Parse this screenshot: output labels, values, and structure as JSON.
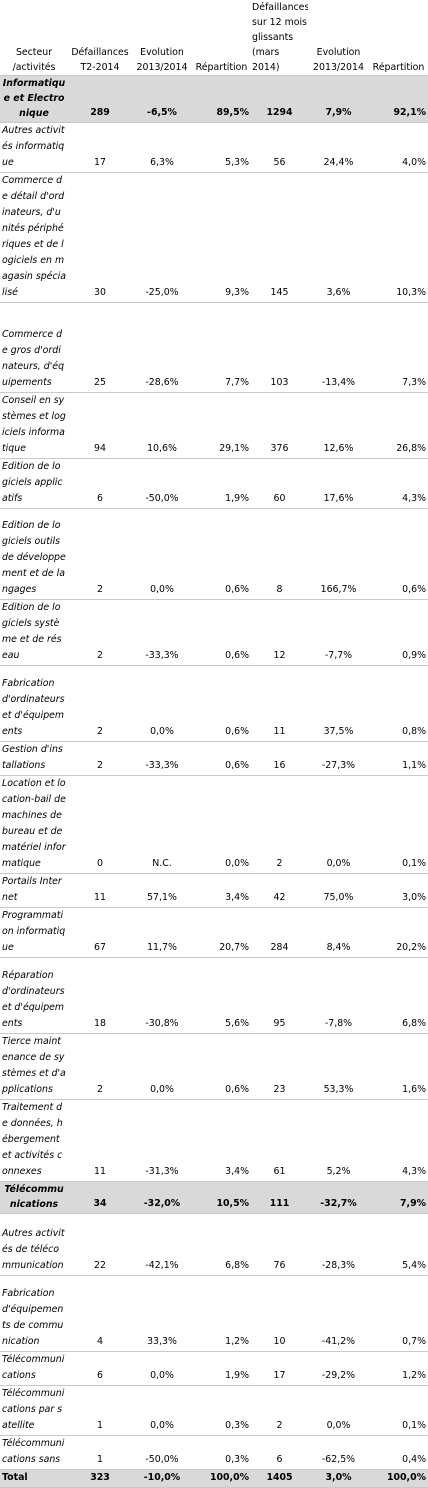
{
  "headers": [
    "Secteur /activités",
    "Défaillances T2-2014",
    "Evolution 2013/2014",
    "Répartition",
    "Défaillances sur 12 mois glissants (mars 2014)",
    "Evolution 2013/2014",
    "Répartition"
  ],
  "rows": [
    {
      "type": "cat",
      "cells": [
        "Informatique et Electronique",
        "289",
        "-6,5%",
        "89,5%",
        "1294",
        "7,9%",
        "92,1%"
      ]
    },
    {
      "type": "item",
      "cells": [
        "Autres activités informatique",
        "17",
        "6,3%",
        "5,3%",
        "56",
        "24,4%",
        "4,0%"
      ]
    },
    {
      "type": "item",
      "cells": [
        "Commerce de détail d'ordinateurs, d'unités périphériques et de logiciels en magasin spécialisé",
        "30",
        "-25,0%",
        "9,3%",
        "145",
        "3,6%",
        "10,3%"
      ]
    },
    {
      "type": "item",
      "cells": [
        "Commerce de gros d'ordinateurs, d'équipements",
        "25",
        "-28,6%",
        "7,7%",
        "103",
        "-13,4%",
        "7,3%"
      ]
    },
    {
      "type": "item",
      "cells": [
        "Conseil en systèmes et logiciels informatique",
        "94",
        "10,6%",
        "29,1%",
        "376",
        "12,6%",
        "26,8%"
      ]
    },
    {
      "type": "item",
      "cells": [
        "Edition de logiciels applicatifs",
        "6",
        "-50,0%",
        "1,9%",
        "60",
        "17,6%",
        "4,3%"
      ]
    },
    {
      "type": "item",
      "cells": [
        "Edition de logiciels outils de développement et de langages",
        "2",
        "0,0%",
        "0,6%",
        "8",
        "166,7%",
        "0,6%"
      ]
    },
    {
      "type": "item",
      "cells": [
        "Edition de logiciels système et de réseau",
        "2",
        "-33,3%",
        "0,6%",
        "12",
        "-7,7%",
        "0,9%"
      ]
    },
    {
      "type": "item",
      "cells": [
        "Fabrication d'ordinateurs et d'équipements",
        "2",
        "0,0%",
        "0,6%",
        "11",
        "37,5%",
        "0,8%"
      ]
    },
    {
      "type": "item",
      "cells": [
        "Gestion d'installations",
        "2",
        "-33,3%",
        "0,6%",
        "16",
        "-27,3%",
        "1,1%"
      ]
    },
    {
      "type": "item",
      "cells": [
        "Location et location-bail de machines de bureau et de matériel informatique",
        "0",
        "N.C.",
        "0,0%",
        "2",
        "0,0%",
        "0,1%"
      ]
    },
    {
      "type": "item",
      "cells": [
        "Portails Internet",
        "11",
        "57,1%",
        "3,4%",
        "42",
        "75,0%",
        "3,0%"
      ]
    },
    {
      "type": "item",
      "cells": [
        "Programmation informatique",
        "67",
        "11,7%",
        "20,7%",
        "284",
        "8,4%",
        "20,2%"
      ]
    },
    {
      "type": "item",
      "cells": [
        "Réparation d'ordinateurs et d'équipements",
        "18",
        "-30,8%",
        "5,6%",
        "95",
        "-7,8%",
        "6,8%"
      ]
    },
    {
      "type": "item",
      "cells": [
        "Tierce maintenance de systèmes et d'applications",
        "2",
        "0,0%",
        "0,6%",
        "23",
        "53,3%",
        "1,6%"
      ]
    },
    {
      "type": "item",
      "cells": [
        "Traitement de données, hébergement et activités connexes",
        "11",
        "-31,3%",
        "3,4%",
        "61",
        "5,2%",
        "4,3%"
      ]
    },
    {
      "type": "cat",
      "cells": [
        "Télécommunications",
        "34",
        "-32,0%",
        "10,5%",
        "111",
        "-32,7%",
        "7,9%"
      ]
    },
    {
      "type": "item",
      "cells": [
        "Autres activités de télécommunication",
        "22",
        "-42,1%",
        "6,8%",
        "76",
        "-28,3%",
        "5,4%"
      ]
    },
    {
      "type": "item",
      "cells": [
        "Fabrication d'équipements de communication",
        "4",
        "33,3%",
        "1,2%",
        "10",
        "-41,2%",
        "0,7%"
      ]
    },
    {
      "type": "item",
      "cells": [
        "Télécommunications",
        "6",
        "0,0%",
        "1,9%",
        "17",
        "-29,2%",
        "1,2%"
      ]
    },
    {
      "type": "item",
      "cells": [
        "Télécommunications par satellite",
        "1",
        "0,0%",
        "0,3%",
        "2",
        "0,0%",
        "0,1%"
      ]
    },
    {
      "type": "item",
      "cells": [
        "Télécommunications sans",
        "1",
        "-50,0%",
        "0,3%",
        "6",
        "-62,5%",
        "0,4%"
      ]
    },
    {
      "type": "total",
      "cells": [
        "Total",
        "323",
        "-10,0%",
        "100,0%",
        "1405",
        "3,0%",
        "100,0%"
      ]
    }
  ]
}
